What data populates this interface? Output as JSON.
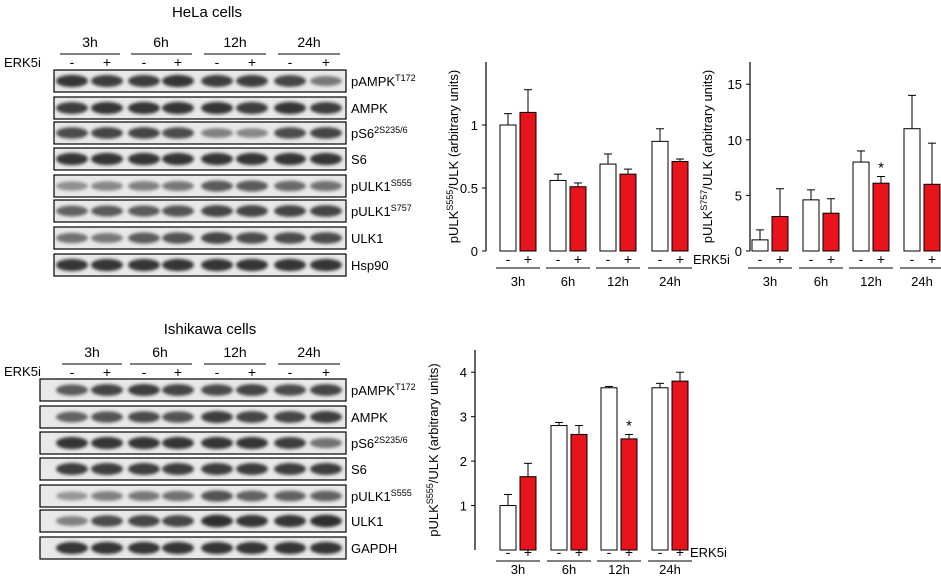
{
  "blots": [
    {
      "title": "HeLa cells",
      "treatment_label": "ERK5i",
      "timepoints": [
        "3h",
        "6h",
        "12h",
        "24h"
      ],
      "signs": [
        "-",
        "+"
      ],
      "rows": [
        {
          "label": "pAMPK",
          "sup": "T172"
        },
        {
          "label": "AMPK",
          "sup": ""
        },
        {
          "label": "pS6",
          "sup": "2S235/6"
        },
        {
          "label": "S6",
          "sup": ""
        },
        {
          "label": "pULK1",
          "sup": "S555"
        },
        {
          "label": "pULK1",
          "sup": "S757"
        },
        {
          "label": "ULK1",
          "sup": ""
        },
        {
          "label": "Hsp90",
          "sup": ""
        }
      ]
    },
    {
      "title": "Ishikawa cells",
      "treatment_label": "ERK5i",
      "timepoints": [
        "3h",
        "6h",
        "12h",
        "24h"
      ],
      "signs": [
        "-",
        "+"
      ],
      "rows": [
        {
          "label": "pAMPK",
          "sup": "T172"
        },
        {
          "label": "AMPK",
          "sup": ""
        },
        {
          "label": "pS6",
          "sup": "2S235/6"
        },
        {
          "label": "S6",
          "sup": ""
        },
        {
          "label": "pULK1",
          "sup": "S555"
        },
        {
          "label": "ULK1",
          "sup": ""
        },
        {
          "label": "GAPDH",
          "sup": ""
        }
      ]
    }
  ],
  "colors": {
    "control": "#ffffff",
    "treated": "#e8141b",
    "axis": "#000000"
  },
  "chart_data": [
    {
      "type": "bar",
      "ylabel_parts": [
        "pULK",
        "S555",
        "/ULK (arbitrary units)"
      ],
      "ylim": [
        0,
        1.5
      ],
      "yticks": [
        0,
        0.5,
        1
      ],
      "ytick_labels": [
        "0",
        "0.5",
        "1"
      ],
      "categories": [
        "3h",
        "6h",
        "12h",
        "24h"
      ],
      "treatment_label": "ERK5i",
      "treatment_label_shown": false,
      "signs": [
        "-",
        "+"
      ],
      "series": [
        {
          "name": "-",
          "values": [
            1.0,
            0.56,
            0.69,
            0.87
          ],
          "errors": [
            0.09,
            0.05,
            0.08,
            0.1
          ]
        },
        {
          "name": "+",
          "values": [
            1.1,
            0.51,
            0.61,
            0.71
          ],
          "errors": [
            0.18,
            0.03,
            0.04,
            0.02
          ]
        }
      ],
      "annotations": []
    },
    {
      "type": "bar",
      "ylabel_parts": [
        "pULK",
        "S757",
        "/ULK (arbitrary units)"
      ],
      "ylim": [
        0,
        17
      ],
      "yticks": [
        0,
        5,
        10,
        15
      ],
      "ytick_labels": [
        "0",
        "5",
        "10",
        "15"
      ],
      "categories": [
        "3h",
        "6h",
        "12h",
        "24h"
      ],
      "treatment_label": "ERK5i",
      "treatment_label_shown": true,
      "signs": [
        "-",
        "+"
      ],
      "series": [
        {
          "name": "-",
          "values": [
            1.0,
            4.6,
            8.0,
            11.0
          ],
          "errors": [
            0.9,
            0.9,
            1.0,
            3.0
          ]
        },
        {
          "name": "+",
          "values": [
            3.1,
            3.4,
            6.1,
            6.0
          ],
          "errors": [
            2.5,
            1.3,
            0.6,
            3.7
          ]
        }
      ],
      "annotations": [
        {
          "category": "12h",
          "series": 1,
          "text": "*"
        }
      ]
    },
    {
      "type": "bar",
      "ylabel_parts": [
        "pULK",
        "S555",
        "/ULK (arbitrary units)"
      ],
      "ylim": [
        0,
        4.5
      ],
      "yticks": [
        1,
        2,
        3,
        4
      ],
      "ytick_labels": [
        "1",
        "2",
        "3",
        "4"
      ],
      "categories": [
        "3h",
        "6h",
        "12h",
        "24h"
      ],
      "treatment_label": "ERK5i",
      "treatment_label_shown": true,
      "signs": [
        "-",
        "+"
      ],
      "series": [
        {
          "name": "-",
          "values": [
            1.0,
            2.8,
            3.65,
            3.65
          ],
          "errors": [
            0.25,
            0.07,
            0.03,
            0.1
          ]
        },
        {
          "name": "+",
          "values": [
            1.65,
            2.6,
            2.5,
            3.8
          ],
          "errors": [
            0.3,
            0.2,
            0.1,
            0.2
          ]
        }
      ],
      "annotations": [
        {
          "category": "12h",
          "series": 1,
          "text": "*"
        }
      ]
    }
  ]
}
